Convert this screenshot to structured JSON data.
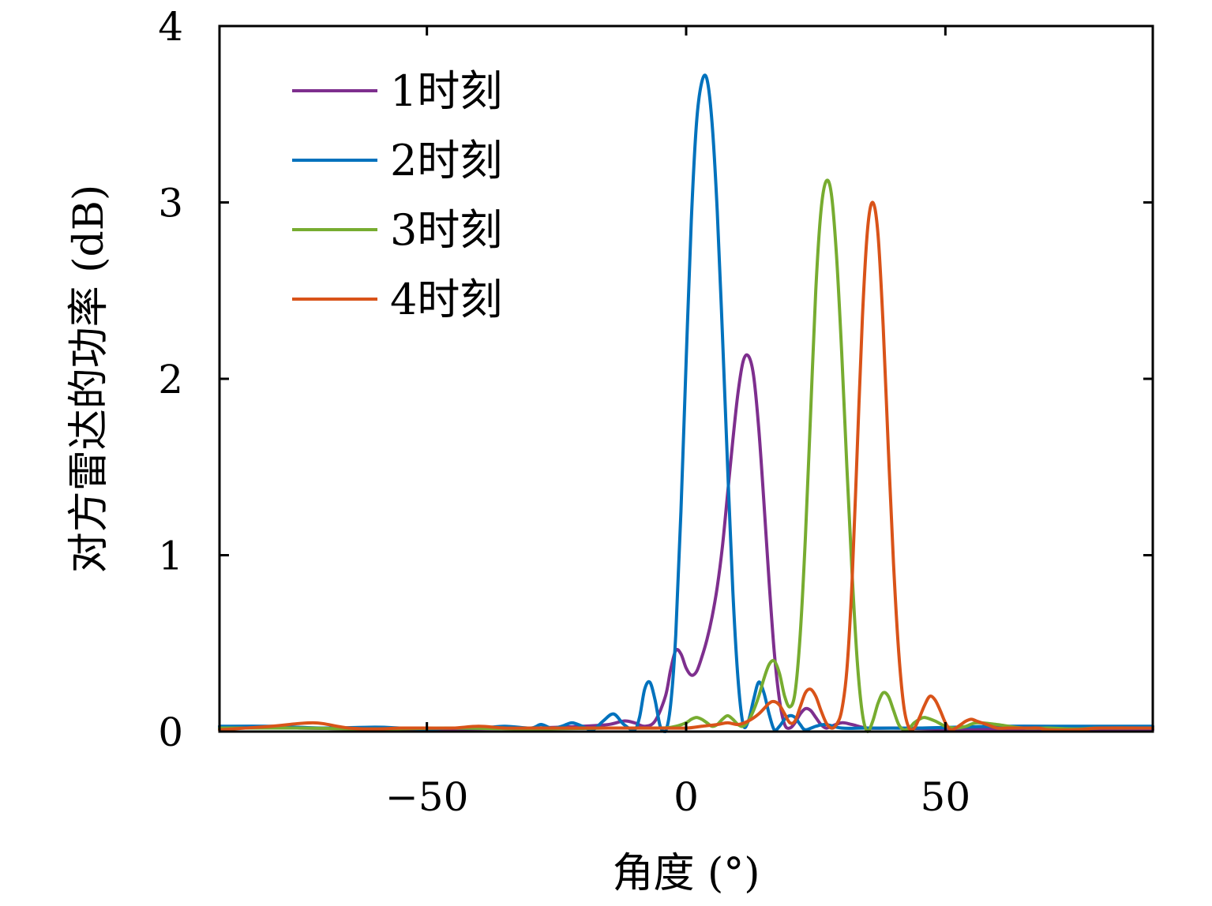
{
  "chart_data": {
    "type": "line",
    "title": "",
    "xlabel": "角度 (°)",
    "ylabel": "对方雷达的功率 (dB)",
    "xlim": [
      -90,
      90
    ],
    "ylim": [
      0,
      4
    ],
    "xticks": [
      -50,
      0,
      50
    ],
    "xtick_labels": [
      "−50",
      "0",
      "50"
    ],
    "yticks": [
      0,
      1,
      2,
      3,
      4
    ],
    "ytick_labels": [
      "0",
      "1",
      "2",
      "3",
      "4"
    ],
    "grid": false,
    "legend": "top-left",
    "series": [
      {
        "name": "1时刻",
        "color": "#7e2f8e",
        "x": [
          -90,
          -75,
          -60,
          -45,
          -30,
          -20,
          -15,
          -12,
          -10,
          -8,
          -6,
          -4,
          -3,
          -2,
          -1,
          0,
          1,
          2,
          3,
          4,
          5,
          6,
          7,
          8,
          9,
          10,
          11,
          12,
          13,
          14,
          15,
          16,
          17,
          18,
          19,
          20,
          21,
          22,
          23,
          24,
          25,
          26,
          27,
          28,
          30,
          32,
          35,
          40,
          50,
          60,
          75,
          90
        ],
        "y": [
          0.02,
          0.02,
          0.015,
          0.015,
          0.02,
          0.03,
          0.04,
          0.06,
          0.05,
          0.03,
          0.06,
          0.2,
          0.35,
          0.46,
          0.44,
          0.36,
          0.32,
          0.34,
          0.42,
          0.52,
          0.65,
          0.82,
          1.05,
          1.35,
          1.65,
          1.92,
          2.1,
          2.13,
          2.02,
          1.72,
          1.3,
          0.85,
          0.45,
          0.18,
          0.04,
          0.02,
          0.05,
          0.1,
          0.13,
          0.12,
          0.08,
          0.04,
          0.02,
          0.03,
          0.05,
          0.04,
          0.02,
          0.02,
          0.015,
          0.015,
          0.01,
          0.01
        ]
      },
      {
        "name": "2时刻",
        "color": "#0072bd",
        "x": [
          -90,
          -80,
          -70,
          -60,
          -55,
          -50,
          -45,
          -40,
          -35,
          -30,
          -28,
          -26,
          -24,
          -22,
          -20,
          -18,
          -16,
          -14,
          -12,
          -10,
          -9,
          -8,
          -7,
          -6,
          -5,
          -4,
          -3,
          -2,
          -1,
          0,
          1,
          2,
          3,
          4,
          5,
          6,
          7,
          8,
          9,
          10,
          11,
          12,
          13,
          14,
          15,
          16,
          17,
          18,
          19,
          20,
          21,
          22,
          23,
          25,
          27,
          30,
          35,
          45,
          60,
          75,
          90
        ],
        "y": [
          0.03,
          0.03,
          0.02,
          0.025,
          0.02,
          0.015,
          0.02,
          0.02,
          0.03,
          0.02,
          0.04,
          0.02,
          0.03,
          0.05,
          0.03,
          0.01,
          0.06,
          0.1,
          0.04,
          0.01,
          0.08,
          0.24,
          0.28,
          0.18,
          0.03,
          0.0,
          0.15,
          0.55,
          1.25,
          2.1,
          2.9,
          3.45,
          3.68,
          3.7,
          3.45,
          2.95,
          2.25,
          1.5,
          0.8,
          0.3,
          0.04,
          0.06,
          0.18,
          0.28,
          0.22,
          0.1,
          0.01,
          0.03,
          0.07,
          0.09,
          0.08,
          0.04,
          0.01,
          0.03,
          0.04,
          0.02,
          0.02,
          0.02,
          0.03,
          0.03,
          0.03
        ]
      },
      {
        "name": "3时刻",
        "color": "#77ac30",
        "x": [
          -90,
          -75,
          -60,
          -45,
          -30,
          -15,
          -5,
          -2,
          0,
          1,
          2,
          3,
          4,
          5,
          6,
          7,
          8,
          9,
          10,
          11,
          12,
          13,
          14,
          15,
          16,
          17,
          18,
          19,
          20,
          21,
          22,
          23,
          24,
          25,
          26,
          27,
          28,
          29,
          30,
          31,
          32,
          33,
          34,
          35,
          36,
          37,
          38,
          39,
          40,
          41,
          42,
          43,
          44,
          45,
          46,
          48,
          50,
          52,
          54,
          56,
          60,
          65,
          70,
          75,
          80,
          90
        ],
        "y": [
          0.02,
          0.02,
          0.015,
          0.02,
          0.015,
          0.02,
          0.02,
          0.03,
          0.05,
          0.07,
          0.08,
          0.07,
          0.05,
          0.03,
          0.04,
          0.07,
          0.09,
          0.07,
          0.04,
          0.03,
          0.06,
          0.12,
          0.2,
          0.3,
          0.38,
          0.4,
          0.33,
          0.2,
          0.14,
          0.22,
          0.55,
          1.1,
          1.8,
          2.5,
          2.95,
          3.12,
          3.05,
          2.7,
          2.15,
          1.5,
          0.9,
          0.4,
          0.1,
          0.0,
          0.06,
          0.16,
          0.22,
          0.2,
          0.12,
          0.04,
          0.01,
          0.02,
          0.05,
          0.07,
          0.08,
          0.06,
          0.03,
          0.02,
          0.03,
          0.05,
          0.04,
          0.02,
          0.02,
          0.015,
          0.02,
          0.02
        ]
      },
      {
        "name": "4时刻",
        "color": "#d95319",
        "x": [
          -90,
          -85,
          -80,
          -75,
          -72,
          -70,
          -65,
          -60,
          -55,
          -50,
          -45,
          -40,
          -35,
          -30,
          -25,
          -20,
          -15,
          -10,
          -5,
          0,
          3,
          6,
          8,
          10,
          12,
          14,
          16,
          17,
          18,
          19,
          20,
          21,
          22,
          23,
          24,
          25,
          26,
          27,
          28,
          29,
          30,
          31,
          32,
          33,
          34,
          35,
          36,
          37,
          38,
          39,
          40,
          41,
          42,
          43,
          44,
          45,
          46,
          47,
          48,
          49,
          50,
          51,
          52,
          53,
          54,
          55,
          56,
          58,
          60,
          62,
          64,
          66,
          68,
          70,
          75,
          80,
          90
        ],
        "y": [
          0.01,
          0.02,
          0.03,
          0.045,
          0.05,
          0.045,
          0.02,
          0.015,
          0.02,
          0.02,
          0.02,
          0.03,
          0.02,
          0.02,
          0.02,
          0.02,
          0.02,
          0.02,
          0.02,
          0.02,
          0.03,
          0.04,
          0.05,
          0.04,
          0.06,
          0.1,
          0.16,
          0.17,
          0.15,
          0.1,
          0.05,
          0.06,
          0.14,
          0.22,
          0.24,
          0.2,
          0.12,
          0.05,
          0.02,
          0.04,
          0.12,
          0.35,
          0.85,
          1.6,
          2.35,
          2.85,
          3.0,
          2.82,
          2.3,
          1.6,
          0.95,
          0.45,
          0.14,
          0.02,
          0.02,
          0.08,
          0.15,
          0.2,
          0.18,
          0.12,
          0.05,
          0.01,
          0.02,
          0.04,
          0.06,
          0.07,
          0.06,
          0.04,
          0.02,
          0.02,
          0.02,
          0.02,
          0.02,
          0.01,
          0.01,
          0.02,
          0.02
        ]
      }
    ]
  }
}
